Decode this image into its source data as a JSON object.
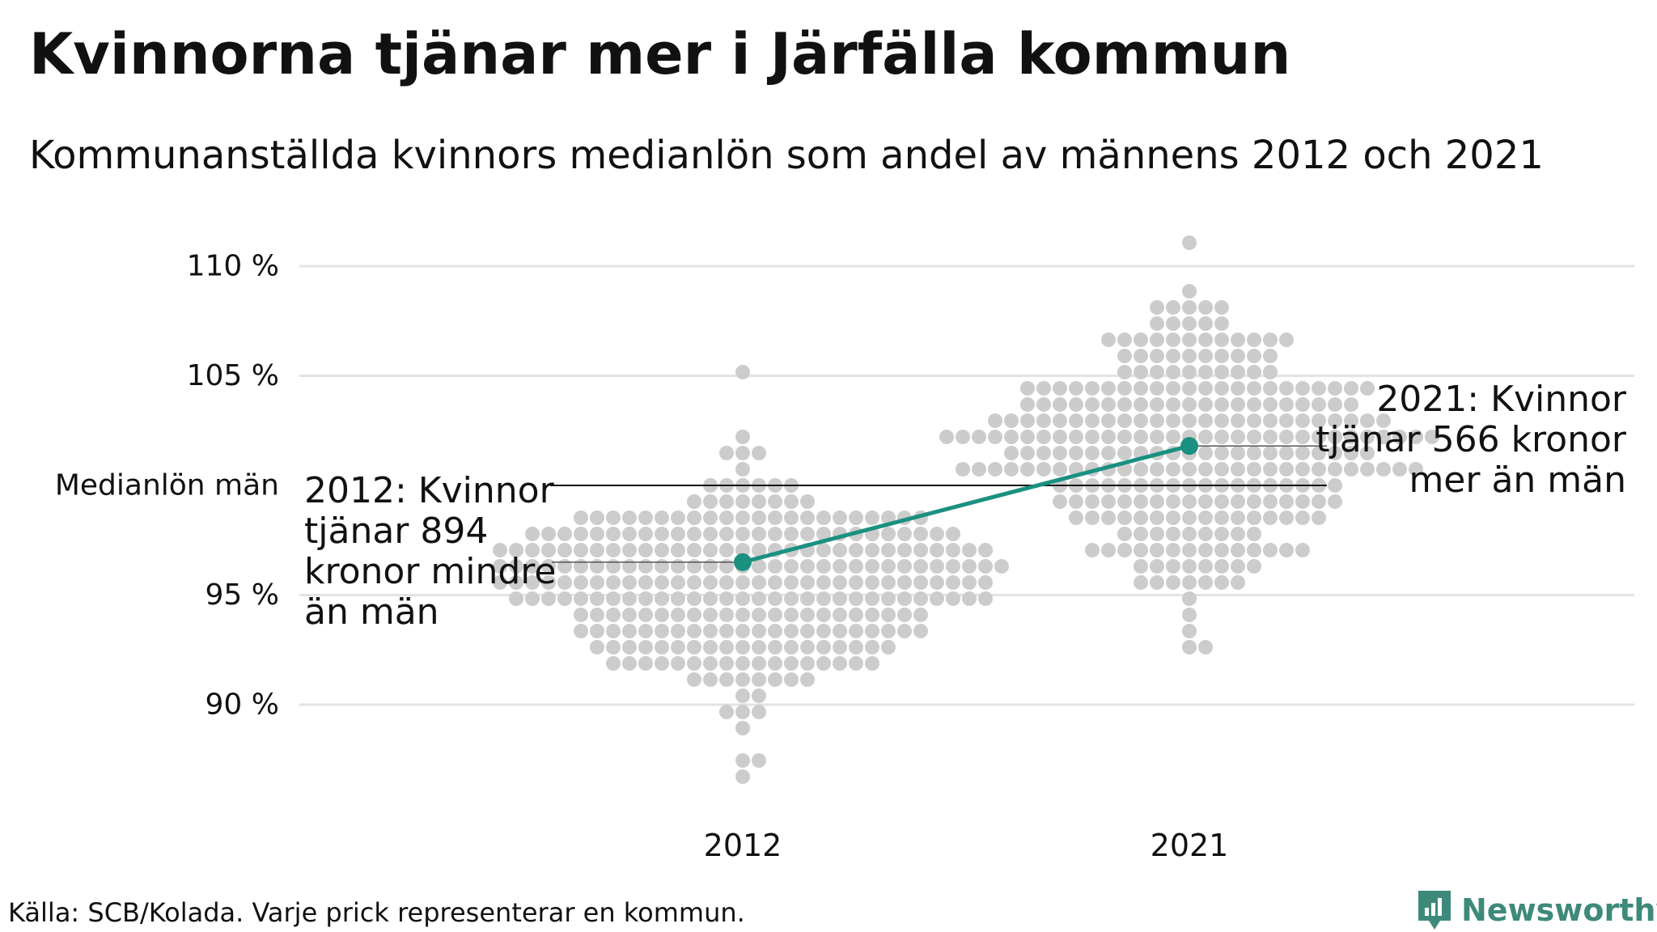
{
  "title": "Kvinnorna tjänar mer i Järfälla kommun",
  "subtitle": "Kommunanställda kvinnors medianlön som andel av männens 2012 och 2021",
  "source": "Källa: SCB/Kolada. Varje prick representerar en kommun.",
  "brand": {
    "name": "Newsworthy",
    "color": "#3e8a7a"
  },
  "colors": {
    "dots": "#cccccc",
    "highlight": "#1a9080",
    "grid": "#e3e3e3",
    "text": "#111111"
  },
  "chart_data": {
    "type": "scatter",
    "subtype": "beeswarm with highlighted line",
    "categories": [
      "2012",
      "2021"
    ],
    "ylim": [
      85,
      112
    ],
    "y_ticks": [
      {
        "value": 90,
        "label": "90 %"
      },
      {
        "value": 95,
        "label": "95 %"
      },
      {
        "value": 100,
        "label": "Medianlön män"
      },
      {
        "value": 105,
        "label": "105 %"
      },
      {
        "value": 110,
        "label": "110 %"
      }
    ],
    "reference_line": {
      "value": 100,
      "label": "Medianlön män"
    },
    "grid": true,
    "dot_distribution": {
      "2012": {
        "center": 95.5,
        "sd": 2.8,
        "min": 86.5,
        "max": 105.3
      },
      "2021": {
        "center": 101.5,
        "sd": 3.0,
        "min": 92.5,
        "max": 111.3
      }
    },
    "highlight": {
      "name": "Järfälla",
      "values": [
        96.5,
        101.8
      ],
      "annotations": [
        {
          "lines": [
            "2012: Kvinnor",
            "tjänar 894",
            "kronor mindre",
            "än män"
          ]
        },
        {
          "lines": [
            "2021: Kvinnor",
            "tjänar 566 kronor",
            "mer än män"
          ]
        }
      ]
    }
  }
}
